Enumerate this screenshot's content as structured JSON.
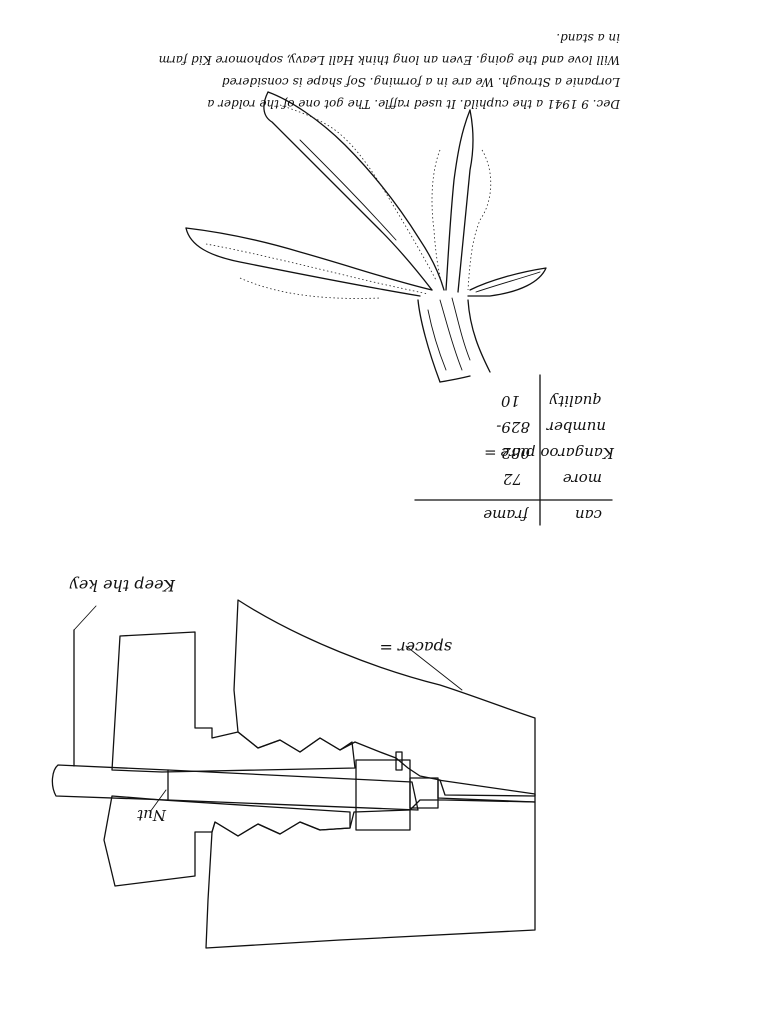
{
  "note": {
    "lines": [
      "Dec. 9 1941 a the cuphild. It used raffle. The got one of the rolder a",
      "Lorpanie a Strough. We are in a forming. Sof shape is considered",
      "Will love and the going. Even an long think Hall Leavy, sophomore Kid farm",
      "in a stand."
    ]
  },
  "table": {
    "rows": [
      {
        "label": "quality",
        "value": "10"
      },
      {
        "label": "number",
        "value": "829-"
      },
      {
        "label": "Kangaroo pure",
        "value": "082 ="
      },
      {
        "label": "more",
        "value": "72"
      },
      {
        "label": "can",
        "value": "frame"
      }
    ]
  },
  "labels": {
    "top_left": "Keep the key",
    "spacer": "spacer =",
    "nut": "Nut"
  }
}
